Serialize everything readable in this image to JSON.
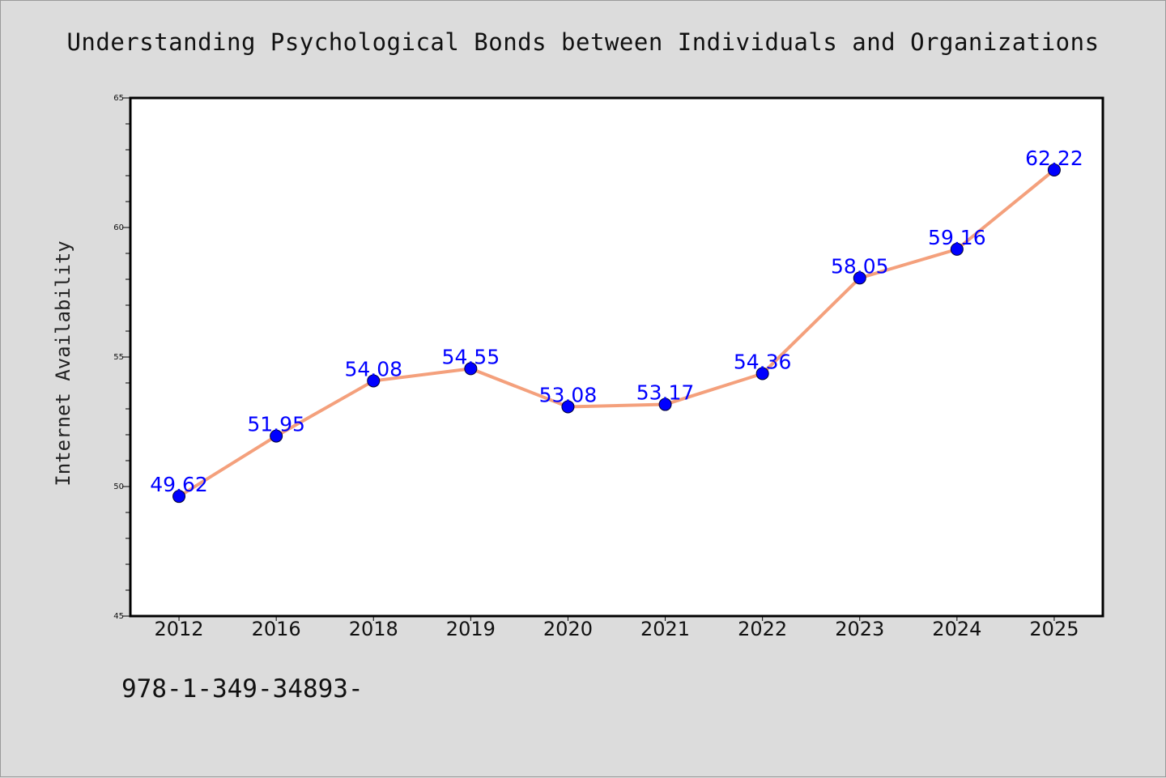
{
  "chart_data": {
    "type": "line",
    "title": "Understanding Psychological Bonds between Individuals and Organizations",
    "xlabel": "",
    "ylabel": "Internet Availability",
    "categories": [
      "2012",
      "2016",
      "2018",
      "2019",
      "2020",
      "2021",
      "2022",
      "2023",
      "2024",
      "2025"
    ],
    "series": [
      {
        "values": [
          49.62,
          51.95,
          54.08,
          54.55,
          53.08,
          53.17,
          54.36,
          58.05,
          59.16,
          62.22
        ],
        "labels": [
          "49.62",
          "51.95",
          "54.08",
          "54.55",
          "53.08",
          "53.17",
          "54.36",
          "58.05",
          "59.16",
          "62.22"
        ]
      }
    ],
    "ylim": [
      45,
      65
    ],
    "yticks": [
      "45",
      "50",
      "55",
      "60",
      "65"
    ],
    "grid": false,
    "colors": {
      "line": "#f4a07c",
      "marker": "#0000ff",
      "data_label": "#0000ff"
    }
  },
  "footer": {
    "code": "978-1-349-34893-"
  }
}
